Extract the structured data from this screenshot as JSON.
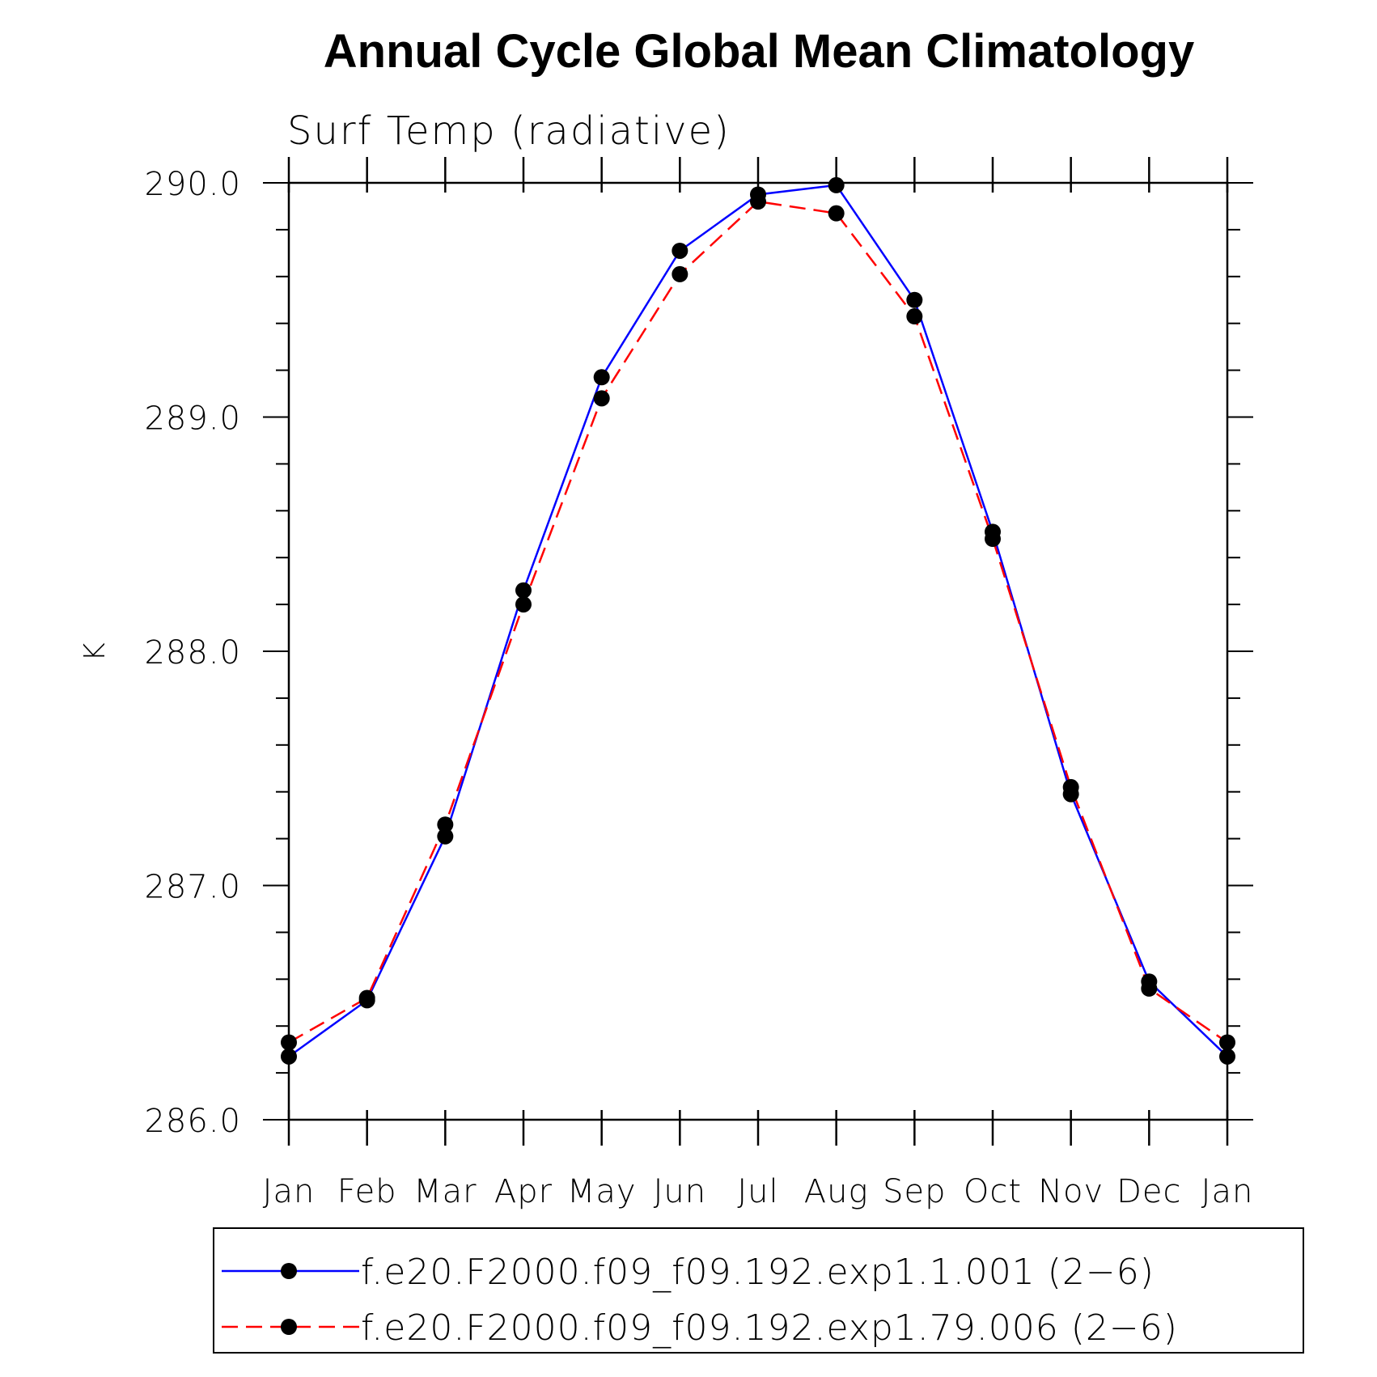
{
  "chart_data": {
    "type": "line",
    "title": "Annual Cycle Global Mean Climatology",
    "subtitle": "Surf Temp (radiative)",
    "xlabel": "",
    "ylabel": "K",
    "categories": [
      "Jan",
      "Feb",
      "Mar",
      "Apr",
      "May",
      "Jun",
      "Jul",
      "Aug",
      "Sep",
      "Oct",
      "Nov",
      "Dec",
      "Jan"
    ],
    "ylim": [
      286.0,
      290.0
    ],
    "yticks": [
      "286.0",
      "287.0",
      "288.0",
      "289.0",
      "290.0"
    ],
    "grid": false,
    "legend_position": "bottom",
    "series": [
      {
        "name": "f.e20.F2000.f09_f09.192.exp1.1.001 (2−6)",
        "color": "#0000ff",
        "line_style": "solid",
        "marker": "filled-circle",
        "values": [
          286.27,
          286.51,
          287.21,
          288.26,
          289.17,
          289.71,
          289.95,
          289.99,
          289.5,
          288.51,
          287.39,
          286.59,
          286.27
        ]
      },
      {
        "name": "f.e20.F2000.f09_f09.192.exp1.79.006 (2−6)",
        "color": "#ff0000",
        "line_style": "dashed",
        "marker": "filled-circle",
        "values": [
          286.33,
          286.52,
          287.26,
          288.2,
          289.08,
          289.61,
          289.92,
          289.87,
          289.43,
          288.48,
          287.42,
          286.56,
          286.33
        ]
      }
    ]
  }
}
